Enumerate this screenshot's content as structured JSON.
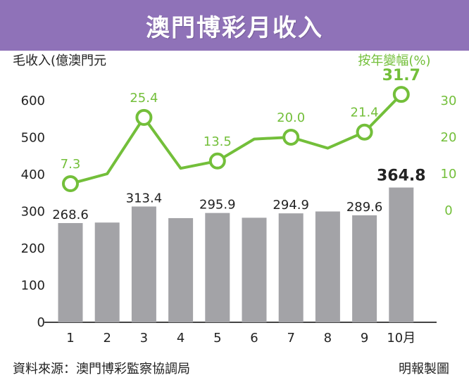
{
  "title": "澳門博彩月收入",
  "source": "資料來源：澳門博彩監察協調局",
  "publisher": "明報製圖",
  "colors": {
    "title_bg": "#8f72b8",
    "bar": "#a3a3a7",
    "line": "#73bf3a",
    "text": "#222222",
    "axis": "#444444"
  },
  "chart_data": {
    "type": "bar",
    "title": "澳門博彩月收入",
    "categories": [
      "1",
      "2",
      "3",
      "4",
      "5",
      "6",
      "7",
      "8",
      "9",
      "10月"
    ],
    "series": [
      {
        "type": "bar",
        "values": [
          268.6,
          270.0,
          313.4,
          282.0,
          295.9,
          283.0,
          294.9,
          300.0,
          289.6,
          364.8
        ],
        "labels": [
          "268.6",
          "",
          "313.4",
          "",
          "295.9",
          "",
          "294.9",
          "",
          "289.6",
          "364.8"
        ]
      },
      {
        "type": "line",
        "values": [
          7.3,
          10.0,
          25.4,
          11.5,
          13.5,
          19.5,
          20.0,
          17.0,
          21.4,
          31.7
        ],
        "labels": [
          "7.3",
          "",
          "25.4",
          "",
          "13.5",
          "",
          "20.0",
          "",
          "21.4",
          "31.7"
        ],
        "markers": [
          0,
          2,
          4,
          6,
          8,
          9
        ]
      }
    ],
    "left_axis": {
      "label": "毛收入(億澳門元",
      "ticks": [
        0,
        100,
        200,
        300,
        400,
        500,
        600
      ],
      "tick_labels": [
        "0",
        "100",
        "200",
        "300",
        "400",
        "500",
        "600"
      ],
      "range": [
        0,
        600
      ]
    },
    "right_axis": {
      "label": "按年變幅(%)",
      "ticks": [
        0,
        10,
        20,
        30
      ],
      "tick_labels": [
        "0",
        "10",
        "20",
        "30"
      ],
      "range": [
        0,
        30
      ]
    },
    "grid": false,
    "legend": "none"
  }
}
